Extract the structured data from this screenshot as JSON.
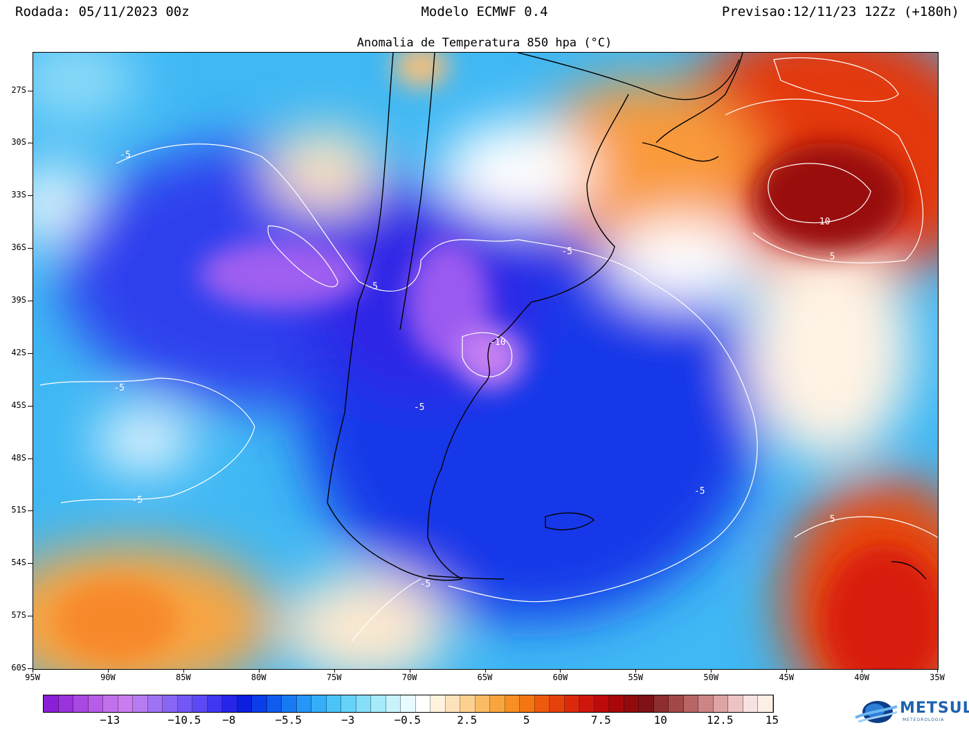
{
  "header": {
    "run": "Rodada: 05/11/2023 00z",
    "model": "Modelo ECMWF 0.4",
    "forecast": "Previsao:12/11/23 12Zz (+180h)"
  },
  "subtitle": "Anomalia de Temperatura 850 hpa (°C)",
  "axes": {
    "lat_labels": [
      "27S",
      "30S",
      "33S",
      "36S",
      "39S",
      "42S",
      "45S",
      "48S",
      "51S",
      "54S",
      "57S",
      "60S"
    ],
    "lon_labels": [
      "95W",
      "90W",
      "85W",
      "80W",
      "75W",
      "70W",
      "65W",
      "60W",
      "55W",
      "50W",
      "45W",
      "40W",
      "35W"
    ]
  },
  "contour_labels": [
    {
      "text": "-5",
      "lon": -88.9,
      "lat": -30.8
    },
    {
      "text": "-5",
      "lon": -72.5,
      "lat": -38.3
    },
    {
      "text": "-5",
      "lon": -59.6,
      "lat": -36.3
    },
    {
      "text": "-10",
      "lon": -64.2,
      "lat": -41.5
    },
    {
      "text": "-5",
      "lon": -89.3,
      "lat": -44.1
    },
    {
      "text": "-5",
      "lon": -69.4,
      "lat": -45.2
    },
    {
      "text": "-5",
      "lon": -88.1,
      "lat": -50.5
    },
    {
      "text": "-5",
      "lon": -50.8,
      "lat": -50.0
    },
    {
      "text": "-5",
      "lon": -69.0,
      "lat": -55.3
    },
    {
      "text": "10",
      "lon": -42.5,
      "lat": -34.6
    },
    {
      "text": "5",
      "lon": -42.0,
      "lat": -36.6
    },
    {
      "text": "5",
      "lon": -42.0,
      "lat": -51.6
    }
  ],
  "colorbar": {
    "colors": [
      "#8a1fd6",
      "#9a33dc",
      "#a948e2",
      "#b65ce7",
      "#c270ec",
      "#c97cf0",
      "#b57cf2",
      "#9f73f4",
      "#8a66f5",
      "#7358f5",
      "#5c48f5",
      "#4037f2",
      "#2626ea",
      "#0c1ee0",
      "#0a3ee8",
      "#0f5cef",
      "#177af3",
      "#2496f6",
      "#34aef8",
      "#4ac3f8",
      "#66d2f9",
      "#85dffa",
      "#a6eafb",
      "#c8f3fc",
      "#e7fafe",
      "#ffffff",
      "#fff2df",
      "#fde2bb",
      "#fcd08f",
      "#fbbb66",
      "#f9a53e",
      "#f78f22",
      "#f47512",
      "#ee5a0d",
      "#e6400c",
      "#dc290c",
      "#cf160c",
      "#bf0a0b",
      "#a8080a",
      "#920a0c",
      "#7e1214",
      "#8e2e30",
      "#a34849",
      "#b86566",
      "#cc8485",
      "#dea4a4",
      "#edc4c3",
      "#f7e2df",
      "#fbefe6"
    ],
    "labels": [
      {
        "text": "−13",
        "pos": 4.5
      },
      {
        "text": "−10.5",
        "pos": 9.5
      },
      {
        "text": "−8",
        "pos": 12.5
      },
      {
        "text": "−5.5",
        "pos": 16.5
      },
      {
        "text": "−3",
        "pos": 20.5
      },
      {
        "text": "−0.5",
        "pos": 24.5
      },
      {
        "text": "2.5",
        "pos": 28.5
      },
      {
        "text": "5",
        "pos": 32.5
      },
      {
        "text": "7.5",
        "pos": 37.5
      },
      {
        "text": "10",
        "pos": 41.5
      },
      {
        "text": "12.5",
        "pos": 45.5
      },
      {
        "text": "15",
        "pos": 49
      }
    ]
  },
  "logo": {
    "name": "METSUL",
    "sub": "METEOROLOGIA"
  }
}
